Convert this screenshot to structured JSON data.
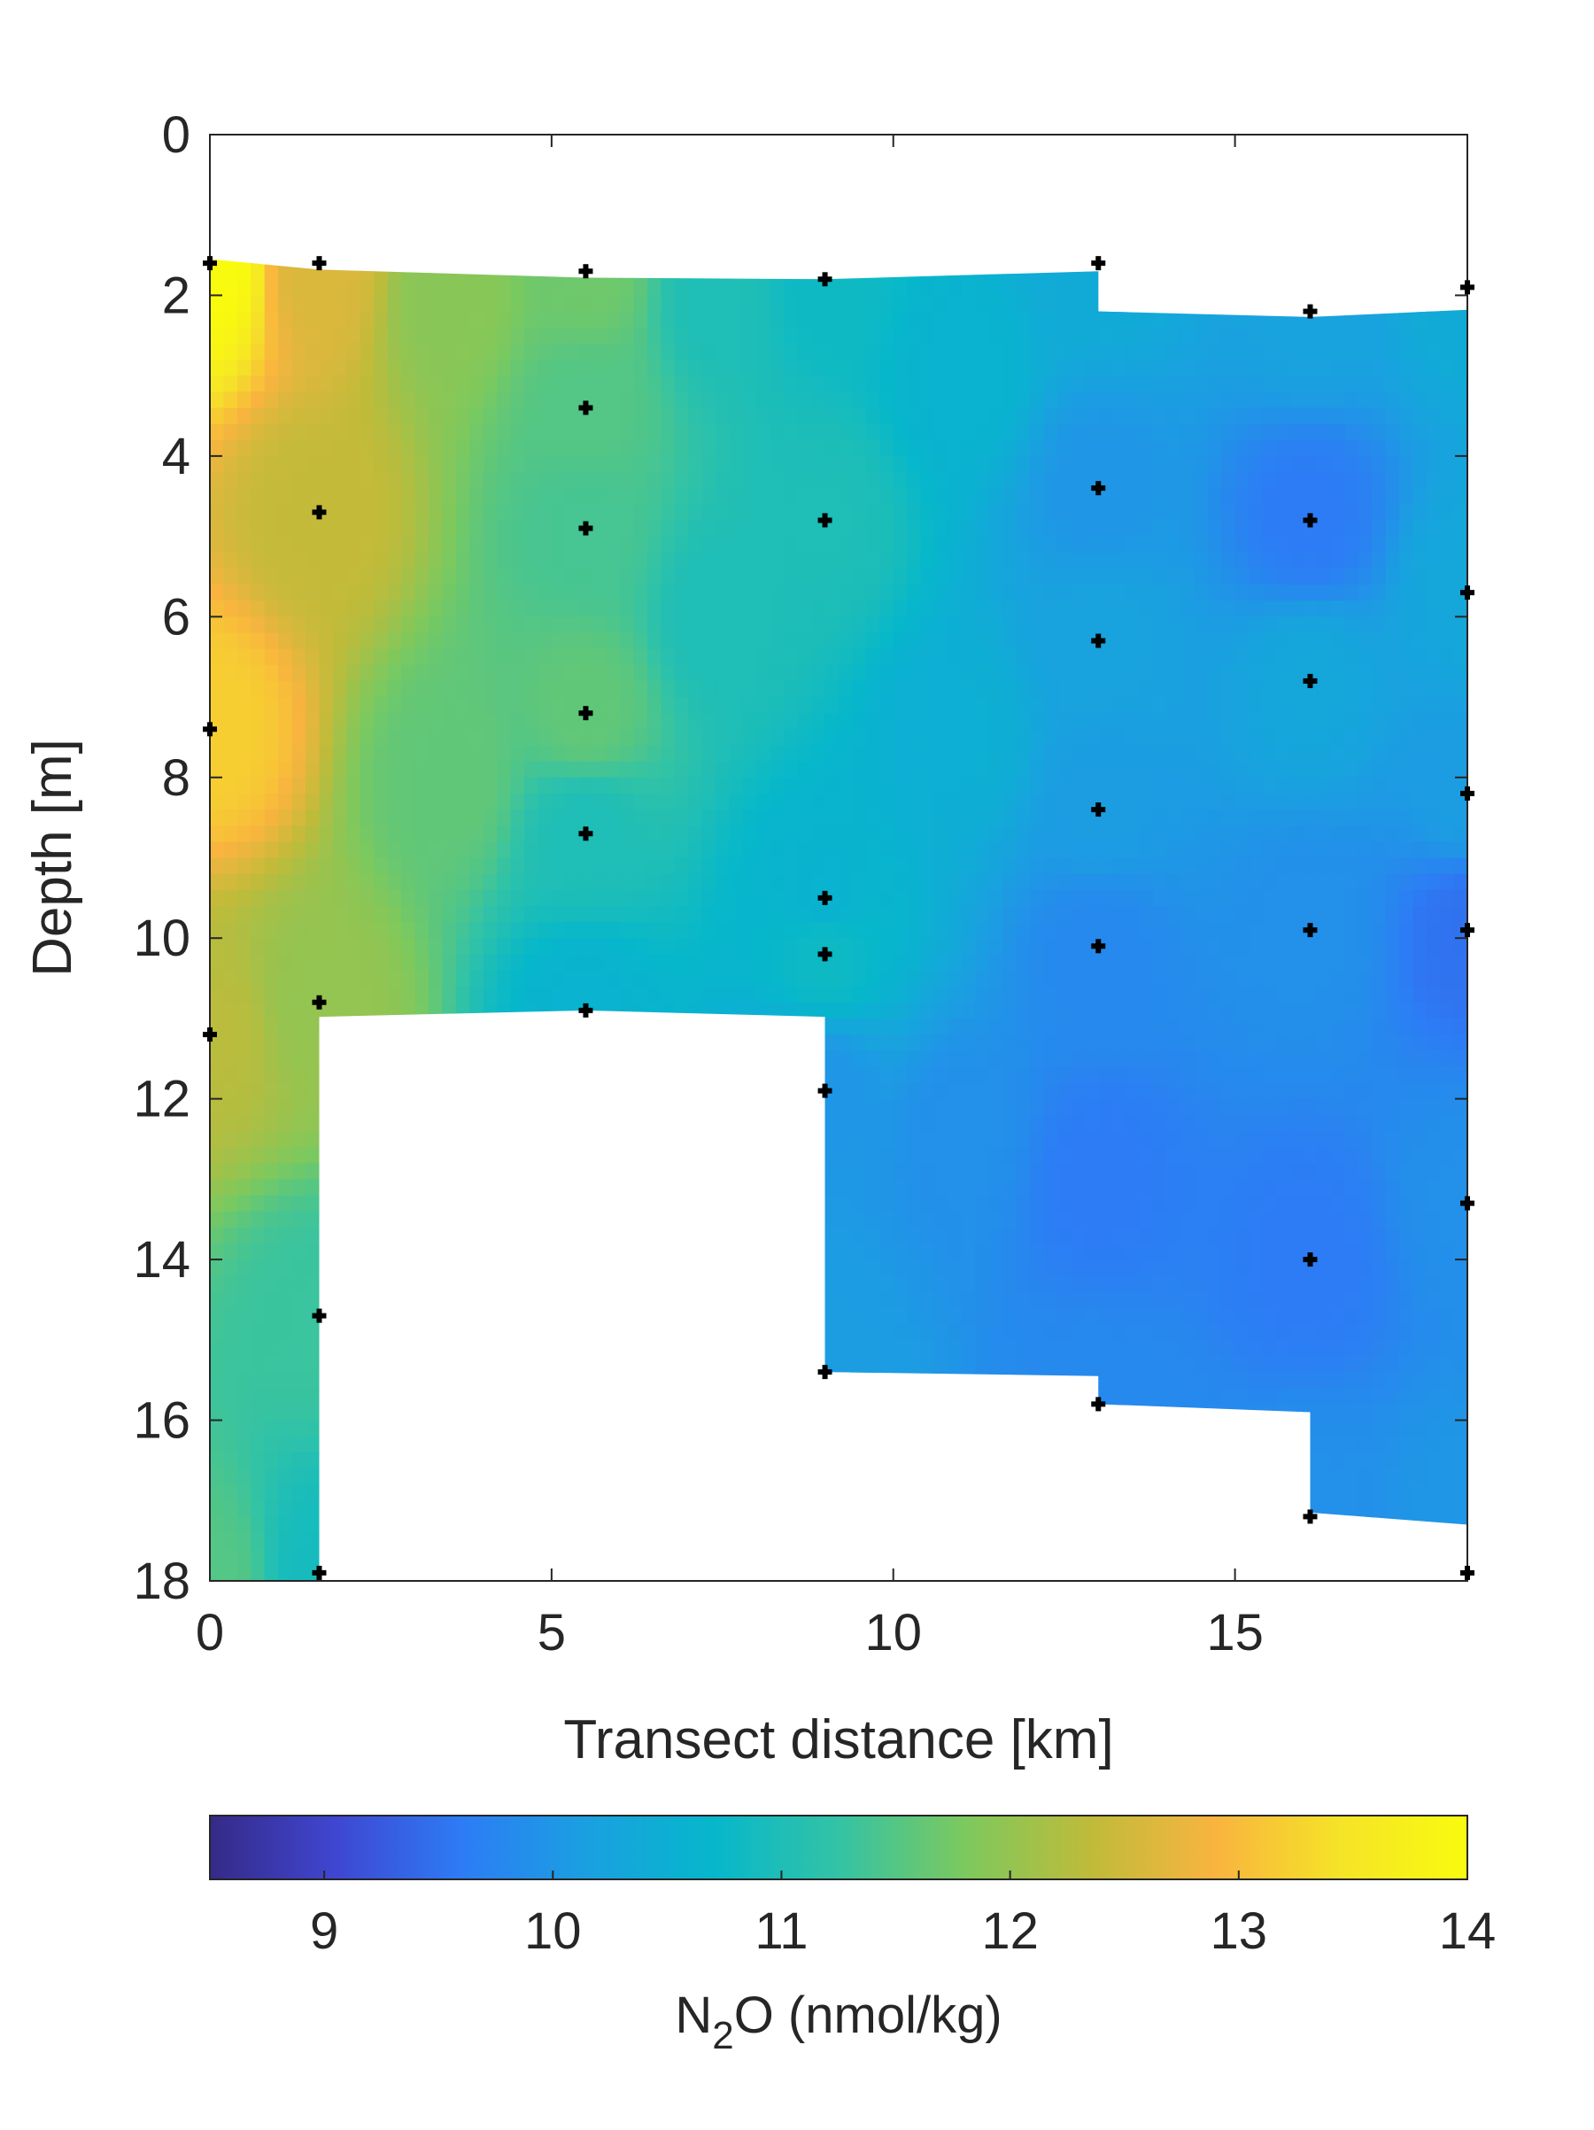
{
  "chart_data": {
    "type": "heatmap",
    "xlabel": "Transect distance [km]",
    "ylabel": "Depth [m]",
    "colorbar_label_main": "N",
    "colorbar_label_sub": "2",
    "colorbar_label_rest": "O (nmol/kg)",
    "xlim": [
      0,
      18.4
    ],
    "ylim": [
      0,
      18
    ],
    "y_reversed": true,
    "x_ticks": [
      "0",
      "5",
      "10",
      "15"
    ],
    "x_tick_values": [
      0,
      5,
      10,
      15
    ],
    "y_ticks": [
      "0",
      "2",
      "4",
      "6",
      "8",
      "10",
      "12",
      "14",
      "16",
      "18"
    ],
    "y_tick_values": [
      0,
      2,
      4,
      6,
      8,
      10,
      12,
      14,
      16,
      18
    ],
    "colorbar_ticks": [
      "9",
      "10",
      "11",
      "12",
      "13",
      "14"
    ],
    "colorbar_tick_values": [
      9,
      10,
      11,
      12,
      13,
      14
    ],
    "clim": [
      8.5,
      14
    ],
    "colormap": [
      "#352a87",
      "#3f46d1",
      "#2d7cf5",
      "#1aa0e0",
      "#06b7cb",
      "#33c3a5",
      "#7cc95e",
      "#bfbb3a",
      "#f9b43f",
      "#f5e427",
      "#f9fb0e"
    ],
    "grid": false,
    "colorbar_location": "bottom",
    "stations": [
      {
        "x": 0,
        "depths": [
          1.6,
          7.4,
          11.2
        ]
      },
      {
        "x": 1.6,
        "depths": [
          1.6,
          4.7,
          10.8,
          14.7,
          17.9
        ]
      },
      {
        "x": 5.5,
        "depths": [
          1.7,
          3.4,
          4.9,
          7.2,
          8.7,
          10.9
        ]
      },
      {
        "x": 9.0,
        "depths": [
          1.8,
          4.8,
          9.5,
          10.2,
          11.9,
          15.4
        ]
      },
      {
        "x": 13.0,
        "depths": [
          1.6,
          4.4,
          6.3,
          8.4,
          10.1,
          15.8
        ]
      },
      {
        "x": 16.1,
        "depths": [
          2.2,
          4.8,
          6.8,
          9.9,
          14.0,
          17.2
        ]
      },
      {
        "x": 18.4,
        "depths": [
          1.9,
          5.7,
          8.2,
          9.9,
          13.3,
          17.9
        ]
      }
    ],
    "field_samples": [
      {
        "x": 0,
        "y": 1.6,
        "v": 14.0
      },
      {
        "x": 0,
        "y": 7.4,
        "v": 13.2
      },
      {
        "x": 0,
        "y": 11.2,
        "v": 12.3
      },
      {
        "x": 0,
        "y": 18.0,
        "v": 11.5
      },
      {
        "x": 1.6,
        "y": 1.7,
        "v": 12.6
      },
      {
        "x": 1.6,
        "y": 4.7,
        "v": 12.4
      },
      {
        "x": 1.6,
        "y": 10.8,
        "v": 12.0
      },
      {
        "x": 1.6,
        "y": 14.7,
        "v": 11.3
      },
      {
        "x": 1.6,
        "y": 17.9,
        "v": 10.9
      },
      {
        "x": 3.5,
        "y": 2.0,
        "v": 11.9
      },
      {
        "x": 3.5,
        "y": 8.0,
        "v": 11.6
      },
      {
        "x": 5.5,
        "y": 1.7,
        "v": 11.7
      },
      {
        "x": 5.5,
        "y": 3.4,
        "v": 11.5
      },
      {
        "x": 5.5,
        "y": 4.9,
        "v": 11.4
      },
      {
        "x": 5.5,
        "y": 7.2,
        "v": 11.6
      },
      {
        "x": 5.5,
        "y": 8.7,
        "v": 11.0
      },
      {
        "x": 5.5,
        "y": 10.9,
        "v": 10.6
      },
      {
        "x": 7.5,
        "y": 2.0,
        "v": 11.0
      },
      {
        "x": 7.5,
        "y": 6.0,
        "v": 11.0
      },
      {
        "x": 9.0,
        "y": 1.8,
        "v": 10.8
      },
      {
        "x": 9.0,
        "y": 4.8,
        "v": 11.0
      },
      {
        "x": 9.0,
        "y": 9.5,
        "v": 10.6
      },
      {
        "x": 9.0,
        "y": 10.2,
        "v": 10.8
      },
      {
        "x": 9.0,
        "y": 11.9,
        "v": 10.0
      },
      {
        "x": 9.0,
        "y": 15.4,
        "v": 10.1
      },
      {
        "x": 11.0,
        "y": 3.0,
        "v": 10.6
      },
      {
        "x": 11.0,
        "y": 7.5,
        "v": 10.5
      },
      {
        "x": 11.0,
        "y": 12.5,
        "v": 9.9
      },
      {
        "x": 13.0,
        "y": 1.6,
        "v": 10.4
      },
      {
        "x": 13.0,
        "y": 4.4,
        "v": 10.0
      },
      {
        "x": 13.0,
        "y": 6.3,
        "v": 10.2
      },
      {
        "x": 13.0,
        "y": 8.4,
        "v": 10.1
      },
      {
        "x": 13.0,
        "y": 10.1,
        "v": 9.8
      },
      {
        "x": 13.0,
        "y": 13.0,
        "v": 9.6
      },
      {
        "x": 13.0,
        "y": 15.8,
        "v": 9.8
      },
      {
        "x": 16.1,
        "y": 2.2,
        "v": 10.2
      },
      {
        "x": 16.1,
        "y": 4.8,
        "v": 9.6
      },
      {
        "x": 16.1,
        "y": 6.8,
        "v": 10.3
      },
      {
        "x": 16.1,
        "y": 9.9,
        "v": 9.9
      },
      {
        "x": 16.1,
        "y": 14.0,
        "v": 9.6
      },
      {
        "x": 16.1,
        "y": 17.2,
        "v": 9.9
      },
      {
        "x": 18.4,
        "y": 1.9,
        "v": 10.4
      },
      {
        "x": 18.4,
        "y": 5.7,
        "v": 10.3
      },
      {
        "x": 18.4,
        "y": 8.2,
        "v": 10.1
      },
      {
        "x": 18.4,
        "y": 9.9,
        "v": 9.5
      },
      {
        "x": 18.4,
        "y": 13.3,
        "v": 9.9
      },
      {
        "x": 18.4,
        "y": 17.3,
        "v": 10.0
      }
    ],
    "coverage_polygon": [
      [
        0,
        1.55
      ],
      [
        1.6,
        1.68
      ],
      [
        5.5,
        1.78
      ],
      [
        9.0,
        1.8
      ],
      [
        13.0,
        1.7
      ],
      [
        13.0,
        2.2
      ],
      [
        16.1,
        2.27
      ],
      [
        18.4,
        2.18
      ],
      [
        18.4,
        17.3
      ],
      [
        16.1,
        17.15
      ],
      [
        16.1,
        15.9
      ],
      [
        13.0,
        15.8
      ],
      [
        13.0,
        15.45
      ],
      [
        9.0,
        15.4
      ],
      [
        9.0,
        10.98
      ],
      [
        5.5,
        10.9
      ],
      [
        1.6,
        10.98
      ],
      [
        1.6,
        18.0
      ],
      [
        0,
        18.0
      ]
    ]
  }
}
